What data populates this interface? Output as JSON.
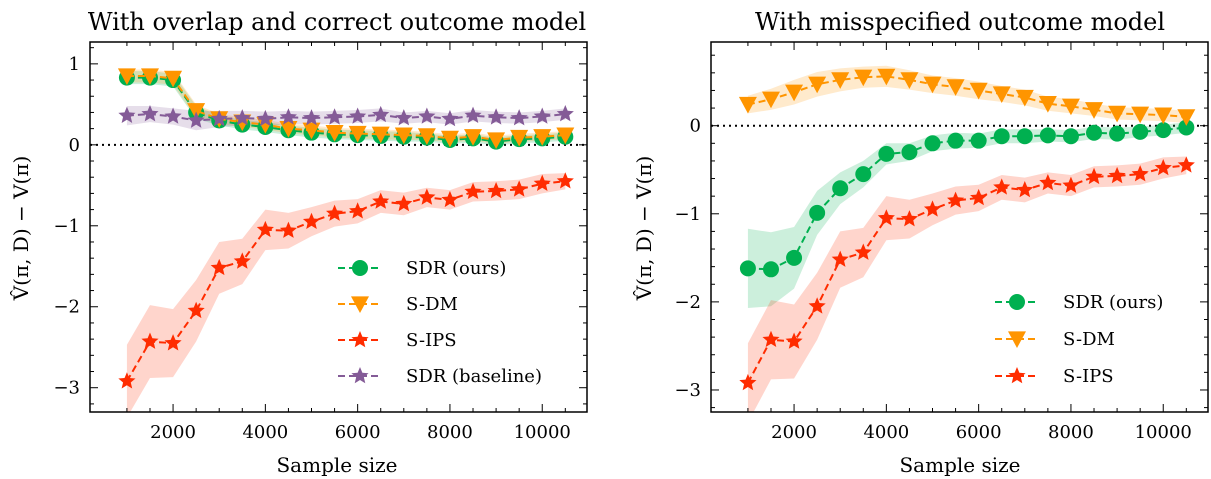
{
  "chart_data": [
    {
      "type": "line",
      "title": "With overlap and correct outcome model",
      "xlabel": "Sample size",
      "ylabel": "V̂(π, D) − V(π)",
      "x": [
        1000,
        1500,
        2000,
        2500,
        3000,
        3500,
        4000,
        4500,
        5000,
        5500,
        6000,
        6500,
        7000,
        7500,
        8000,
        8500,
        9000,
        9500,
        10000,
        10500
      ],
      "xlim": [
        200,
        10970
      ],
      "ylim": [
        -3.3,
        1.27
      ],
      "xticks": [
        "2000",
        "4000",
        "6000",
        "8000",
        "10000"
      ],
      "yticks": [
        "1",
        "0",
        "−1",
        "−2",
        "−3"
      ],
      "reference_line": 0,
      "legend_position": "bottom-right",
      "series": [
        {
          "name": "SDR (ours)",
          "color": "#00b050",
          "marker": "circle",
          "values": [
            0.83,
            0.83,
            0.8,
            0.4,
            0.3,
            0.25,
            0.22,
            0.18,
            0.15,
            0.13,
            0.12,
            0.11,
            0.1,
            0.09,
            0.06,
            0.08,
            0.04,
            0.07,
            0.08,
            0.1
          ],
          "band": [
            0.08,
            0.08,
            0.08,
            0.08,
            0.06,
            0.06,
            0.06,
            0.06,
            0.06,
            0.06,
            0.06,
            0.06,
            0.06,
            0.05,
            0.05,
            0.05,
            0.05,
            0.05,
            0.05,
            0.05
          ]
        },
        {
          "name": "S-DM",
          "color": "#ff9500",
          "marker": "triangle-down",
          "values": [
            0.85,
            0.85,
            0.82,
            0.42,
            0.32,
            0.28,
            0.25,
            0.2,
            0.18,
            0.15,
            0.14,
            0.13,
            0.12,
            0.11,
            0.08,
            0.1,
            0.06,
            0.09,
            0.1,
            0.12
          ],
          "band": [
            0.08,
            0.08,
            0.08,
            0.08,
            0.06,
            0.06,
            0.06,
            0.06,
            0.06,
            0.06,
            0.06,
            0.06,
            0.06,
            0.05,
            0.05,
            0.05,
            0.05,
            0.05,
            0.05,
            0.05
          ]
        },
        {
          "name": "S-IPS",
          "color": "#ff2c00",
          "marker": "star",
          "values": [
            -2.92,
            -2.43,
            -2.45,
            -2.05,
            -1.52,
            -1.44,
            -1.05,
            -1.06,
            -0.95,
            -0.85,
            -0.82,
            -0.7,
            -0.73,
            -0.65,
            -0.68,
            -0.58,
            -0.57,
            -0.55,
            -0.48,
            -0.45
          ],
          "band": [
            0.45,
            0.45,
            0.42,
            0.38,
            0.32,
            0.28,
            0.25,
            0.22,
            0.18,
            0.16,
            0.15,
            0.14,
            0.14,
            0.12,
            0.12,
            0.12,
            0.12,
            0.12,
            0.12,
            0.1
          ]
        },
        {
          "name": "SDR (baseline)",
          "color": "#845b97",
          "marker": "star",
          "values": [
            0.36,
            0.38,
            0.35,
            0.3,
            0.32,
            0.33,
            0.32,
            0.34,
            0.33,
            0.34,
            0.35,
            0.37,
            0.33,
            0.35,
            0.32,
            0.36,
            0.34,
            0.33,
            0.35,
            0.38
          ],
          "band": [
            0.12,
            0.1,
            0.1,
            0.12,
            0.1,
            0.09,
            0.09,
            0.08,
            0.08,
            0.08,
            0.08,
            0.08,
            0.07,
            0.07,
            0.07,
            0.07,
            0.07,
            0.07,
            0.07,
            0.07
          ]
        }
      ]
    },
    {
      "type": "line",
      "title": "With misspecified outcome model",
      "xlabel": "Sample size",
      "ylabel": "V̂(π, D) − V(π)",
      "x": [
        1000,
        1500,
        2000,
        2500,
        3000,
        3500,
        4000,
        4500,
        5000,
        5500,
        6000,
        6500,
        7000,
        7500,
        8000,
        8500,
        9000,
        9500,
        10000,
        10500
      ],
      "xlim": [
        200,
        10970
      ],
      "ylim": [
        -3.25,
        0.95
      ],
      "xticks": [
        "2000",
        "4000",
        "6000",
        "8000",
        "10000"
      ],
      "yticks": [
        "0",
        "−1",
        "−2",
        "−3"
      ],
      "reference_line": 0,
      "legend_position": "bottom-right",
      "series": [
        {
          "name": "SDR (ours)",
          "color": "#00b050",
          "marker": "circle",
          "values": [
            -1.62,
            -1.63,
            -1.5,
            -0.99,
            -0.71,
            -0.55,
            -0.32,
            -0.3,
            -0.2,
            -0.17,
            -0.17,
            -0.12,
            -0.12,
            -0.11,
            -0.12,
            -0.08,
            -0.09,
            -0.07,
            -0.05,
            -0.02
          ],
          "band": [
            0.45,
            0.42,
            0.35,
            0.25,
            0.18,
            0.15,
            0.12,
            0.1,
            0.09,
            0.09,
            0.08,
            0.08,
            0.08,
            0.07,
            0.07,
            0.07,
            0.07,
            0.06,
            0.06,
            0.06
          ]
        },
        {
          "name": "S-DM",
          "color": "#ff9500",
          "marker": "triangle-down",
          "values": [
            0.24,
            0.3,
            0.38,
            0.47,
            0.52,
            0.55,
            0.56,
            0.52,
            0.47,
            0.44,
            0.4,
            0.36,
            0.32,
            0.25,
            0.22,
            0.18,
            0.14,
            0.13,
            0.12,
            0.1
          ],
          "band": [
            0.1,
            0.12,
            0.14,
            0.14,
            0.13,
            0.12,
            0.12,
            0.11,
            0.1,
            0.1,
            0.1,
            0.09,
            0.09,
            0.08,
            0.08,
            0.07,
            0.07,
            0.07,
            0.07,
            0.07
          ]
        },
        {
          "name": "S-IPS",
          "color": "#ff2c00",
          "marker": "star",
          "values": [
            -2.92,
            -2.43,
            -2.45,
            -2.05,
            -1.52,
            -1.44,
            -1.05,
            -1.06,
            -0.95,
            -0.85,
            -0.82,
            -0.7,
            -0.73,
            -0.65,
            -0.68,
            -0.58,
            -0.57,
            -0.55,
            -0.48,
            -0.45
          ],
          "band": [
            0.45,
            0.45,
            0.42,
            0.38,
            0.32,
            0.28,
            0.25,
            0.22,
            0.18,
            0.16,
            0.15,
            0.14,
            0.14,
            0.12,
            0.12,
            0.12,
            0.12,
            0.12,
            0.12,
            0.1
          ]
        }
      ]
    }
  ]
}
